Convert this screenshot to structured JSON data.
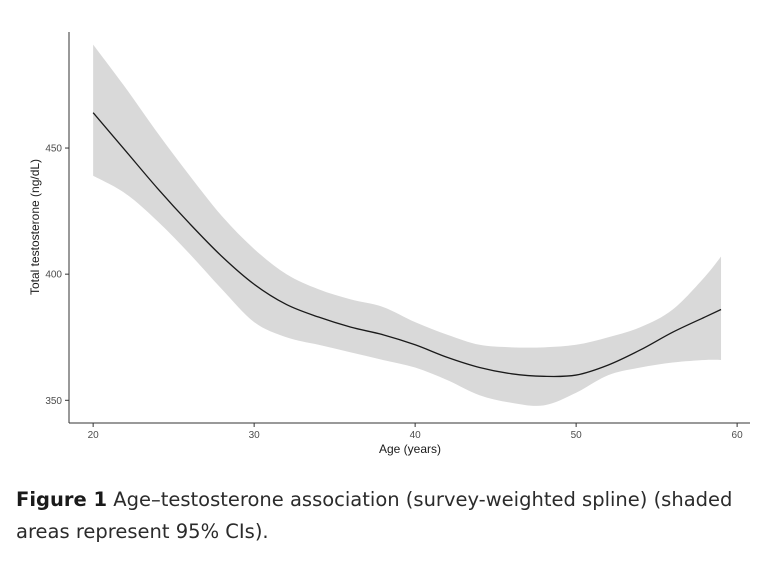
{
  "chart_data": {
    "type": "line",
    "title": "",
    "xlabel": "Age (years)",
    "ylabel": "Total testosterone (ng/dL)",
    "xlim": [
      18.5,
      60.8
    ],
    "ylim": [
      341,
      496
    ],
    "xticks": [
      20,
      30,
      40,
      50,
      60
    ],
    "yticks": [
      350,
      400,
      450
    ],
    "grid": false,
    "band_color": "#d9d9d9",
    "line_color": "#1a1a1a",
    "series": [
      {
        "type": "line",
        "x": [
          20,
          22,
          24,
          26,
          28,
          30,
          32,
          34,
          36,
          38,
          40,
          42,
          44,
          46,
          48,
          50,
          52,
          54,
          56,
          58,
          59
        ],
        "y": [
          464,
          449,
          434,
          420,
          407,
          396,
          388,
          383,
          379,
          376,
          372,
          367,
          363,
          360.5,
          359.5,
          360,
          364,
          370,
          377,
          383,
          386
        ]
      },
      {
        "type": "ci_band",
        "x": [
          20,
          22,
          24,
          26,
          28,
          30,
          32,
          34,
          36,
          38,
          40,
          42,
          44,
          46,
          48,
          50,
          52,
          54,
          56,
          58,
          59
        ],
        "lower": [
          439,
          432,
          421,
          408,
          394,
          381,
          375,
          372,
          369,
          366,
          363,
          358,
          352,
          349,
          348,
          353,
          360,
          363,
          365,
          366,
          366
        ],
        "upper": [
          491,
          474,
          456,
          439,
          423,
          410,
          400,
          394,
          390,
          387,
          381,
          376,
          372,
          371,
          371,
          372,
          375,
          379,
          386,
          399,
          407
        ]
      }
    ]
  },
  "caption": {
    "label": "Figure 1",
    "text": "Age–testosterone association (survey-weighted spline) (shaded areas represent 95% CIs)."
  }
}
